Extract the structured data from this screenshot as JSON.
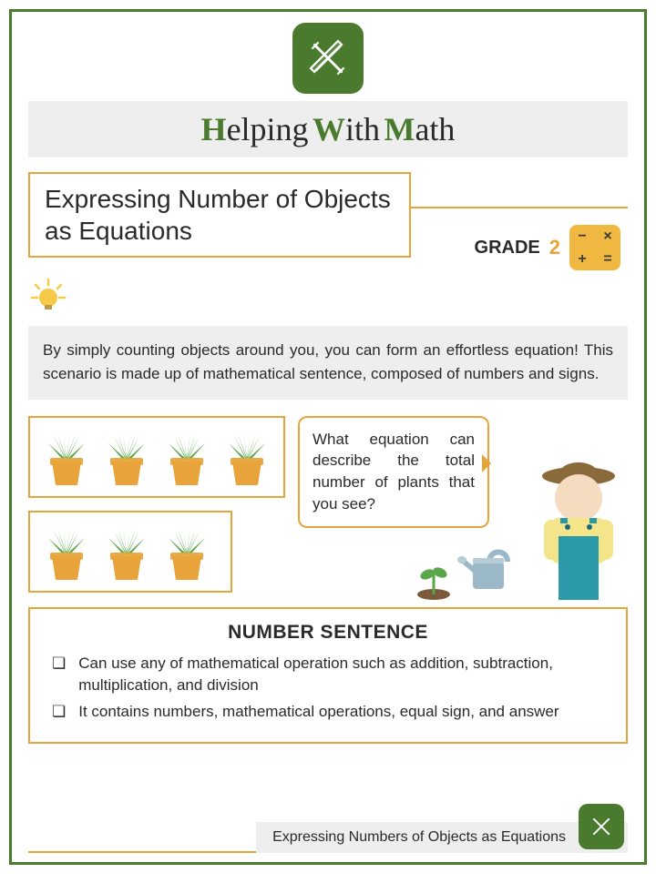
{
  "title": {
    "w1_cap": "H",
    "w1": "elping",
    "w2_cap": "W",
    "w2": "ith",
    "w3_cap": "M",
    "w3": "ath"
  },
  "subtitle": "Expressing Number of Objects as Equations",
  "grade": {
    "label": "GRADE",
    "number": "2",
    "ops": [
      "−",
      "×",
      "+",
      "="
    ]
  },
  "intro": "By simply counting objects around you, you can form an effortless equation! This scenario is made up of mathematical sentence, composed of numbers and signs.",
  "bubble": "What equation can describe the total number of plants that you see?",
  "plants": {
    "row1_count": 4,
    "row2_count": 3,
    "pot_color": "#e8a43a",
    "leaf_color": "#5aa64a"
  },
  "number_sentence": {
    "title": "NUMBER SENTENCE",
    "items": [
      "Can use any of mathematical operation such as addition, subtraction, multiplication, and division",
      "It contains numbers, mathematical operations, equal sign, and answer"
    ]
  },
  "footer": "Expressing Numbers of Objects as Equations",
  "colors": {
    "brand_green": "#4a7a2e",
    "accent_orange": "#e8a43a",
    "box_grey": "#eeeeee",
    "ops_yellow": "#f0b840",
    "bulb_yellow": "#f7c948",
    "farmer_hat": "#8a6a3a",
    "farmer_skin": "#f5dcc0",
    "farmer_shirt": "#f5e58a",
    "farmer_overalls": "#2a9aa8",
    "can_blue": "#9ab8c8",
    "sprout_soil": "#7a5a3a"
  }
}
